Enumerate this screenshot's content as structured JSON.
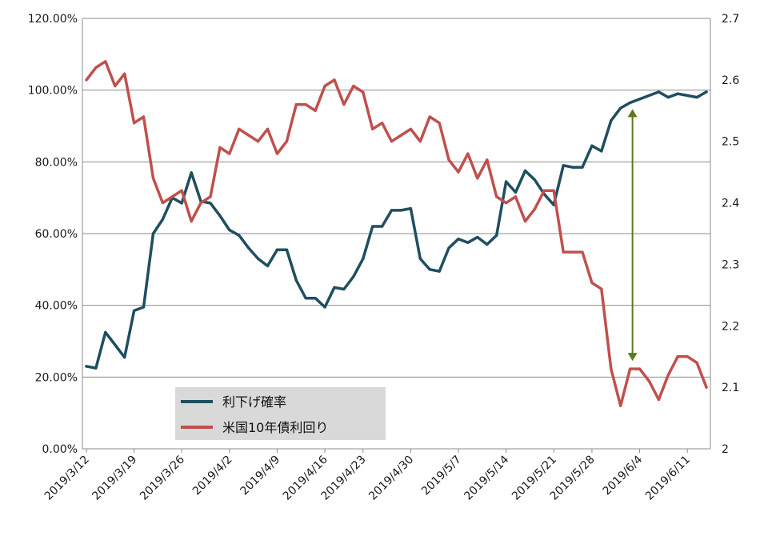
{
  "chart_data": {
    "type": "line",
    "title": "",
    "x": [
      "2019/3/12",
      "2019/3/13",
      "2019/3/14",
      "2019/3/15",
      "2019/3/18",
      "2019/3/19",
      "2019/3/20",
      "2019/3/21",
      "2019/3/22",
      "2019/3/25",
      "2019/3/26",
      "2019/3/27",
      "2019/3/28",
      "2019/3/29",
      "2019/4/1",
      "2019/4/2",
      "2019/4/3",
      "2019/4/4",
      "2019/4/5",
      "2019/4/8",
      "2019/4/9",
      "2019/4/10",
      "2019/4/11",
      "2019/4/12",
      "2019/4/15",
      "2019/4/16",
      "2019/4/17",
      "2019/4/18",
      "2019/4/22",
      "2019/4/23",
      "2019/4/24",
      "2019/4/25",
      "2019/4/26",
      "2019/4/29",
      "2019/4/30",
      "2019/5/1",
      "2019/5/2",
      "2019/5/3",
      "2019/5/6",
      "2019/5/7",
      "2019/5/8",
      "2019/5/9",
      "2019/5/10",
      "2019/5/13",
      "2019/5/14",
      "2019/5/15",
      "2019/5/16",
      "2019/5/17",
      "2019/5/20",
      "2019/5/21",
      "2019/5/22",
      "2019/5/23",
      "2019/5/24",
      "2019/5/28",
      "2019/5/29",
      "2019/5/30",
      "2019/5/31",
      "2019/6/3",
      "2019/6/4",
      "2019/6/5",
      "2019/6/6",
      "2019/6/7",
      "2019/6/10",
      "2019/6/11",
      "2019/6/12",
      "2019/6/13"
    ],
    "x_ticks": [
      "2019/3/12",
      "2019/3/19",
      "2019/3/26",
      "2019/4/2",
      "2019/4/9",
      "2019/4/16",
      "2019/4/23",
      "2019/4/30",
      "2019/5/7",
      "2019/5/14",
      "2019/5/21",
      "2019/5/28",
      "2019/6/4",
      "2019/6/11"
    ],
    "y_left": {
      "ticks": [
        "0.00%",
        "20.00%",
        "40.00%",
        "60.00%",
        "80.00%",
        "100.00%",
        "120.00%"
      ],
      "lim": [
        0,
        120
      ]
    },
    "y_right": {
      "ticks": [
        "2",
        "2.1",
        "2.2",
        "2.3",
        "2.4",
        "2.5",
        "2.6",
        "2.7"
      ],
      "lim": [
        2.0,
        2.7
      ]
    },
    "grid": "horizontal",
    "legend_position": "bottom-left",
    "series": [
      {
        "name": "利下げ確率",
        "axis": "left",
        "color": "#1f4e5f",
        "values": [
          23,
          22.5,
          32.5,
          29,
          25.5,
          38.5,
          39.5,
          60,
          64,
          70,
          68.5,
          77,
          69,
          68.5,
          65,
          61,
          59.5,
          56,
          53,
          51,
          55.5,
          55.5,
          47,
          42,
          42,
          39.5,
          45,
          44.5,
          48,
          53,
          62,
          62,
          66.5,
          66.5,
          67,
          53,
          50,
          49.5,
          56,
          58.5,
          57.5,
          59,
          57,
          59.5,
          74.5,
          71.5,
          77.5,
          75,
          71,
          68,
          79,
          78.5,
          78.5,
          84.5,
          83,
          91.5,
          95,
          96.5,
          97.5,
          98.5,
          99.5,
          98,
          99,
          98.5,
          98,
          99.5
        ]
      },
      {
        "name": "米国10年債利回り",
        "axis": "right",
        "color": "#c0504d",
        "values": [
          2.6,
          2.62,
          2.63,
          2.59,
          2.61,
          2.53,
          2.54,
          2.44,
          2.4,
          2.41,
          2.42,
          2.37,
          2.4,
          2.41,
          2.49,
          2.48,
          2.52,
          2.51,
          2.5,
          2.52,
          2.48,
          2.5,
          2.56,
          2.56,
          2.55,
          2.59,
          2.6,
          2.56,
          2.59,
          2.58,
          2.52,
          2.53,
          2.5,
          2.51,
          2.52,
          2.5,
          2.54,
          2.53,
          2.47,
          2.45,
          2.48,
          2.44,
          2.47,
          2.41,
          2.4,
          2.41,
          2.37,
          2.39,
          2.42,
          2.42,
          2.32,
          2.32,
          2.32,
          2.27,
          2.26,
          2.13,
          2.07,
          2.13,
          2.13,
          2.11,
          2.08,
          2.12,
          2.15,
          2.15,
          2.14,
          2.1
        ]
      }
    ],
    "annotation": "double-headed arrow between series near 2019/6/3"
  }
}
